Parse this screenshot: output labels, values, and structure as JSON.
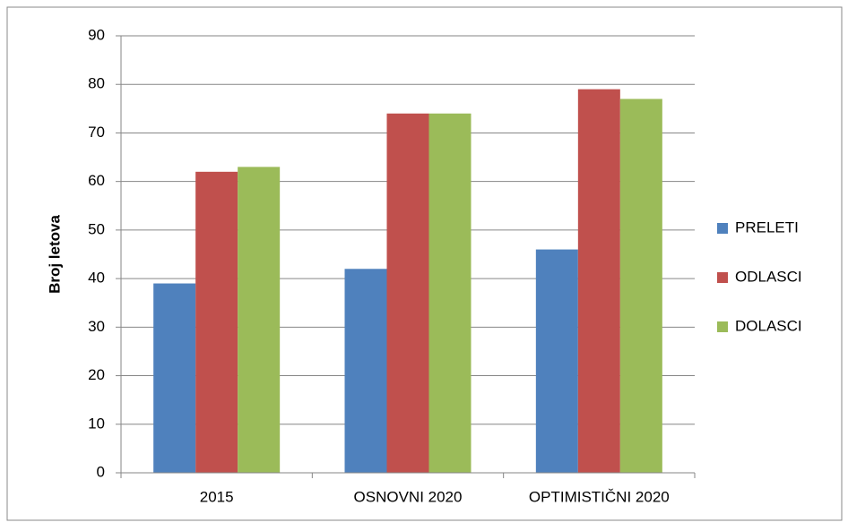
{
  "chart_data": {
    "type": "bar",
    "y_label": "Broj letova",
    "categories": [
      "2015",
      "OSNOVNI 2020",
      "OPTIMISTIČNI 2020"
    ],
    "series": [
      {
        "name": "PRELETI",
        "color": "#4f81bd",
        "values": [
          39,
          42,
          46
        ]
      },
      {
        "name": "ODLASCI",
        "color": "#c0504d",
        "values": [
          62,
          74,
          79
        ]
      },
      {
        "name": "DOLASCI",
        "color": "#9bbb59",
        "values": [
          63,
          74,
          77
        ]
      }
    ],
    "ylim": [
      0,
      90
    ],
    "yticks": [
      0,
      10,
      20,
      30,
      40,
      50,
      60,
      70,
      80,
      90
    ],
    "grid": true,
    "legend": "right"
  }
}
